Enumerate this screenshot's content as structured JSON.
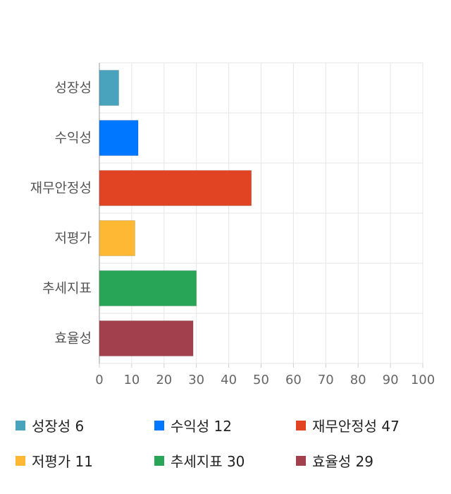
{
  "chart_data": {
    "type": "bar",
    "orientation": "horizontal",
    "title": "",
    "xlabel": "",
    "ylabel": "",
    "categories": [
      "성장성",
      "수익성",
      "재무안정성",
      "저평가",
      "추세지표",
      "효율성"
    ],
    "values": [
      6,
      12,
      47,
      11,
      30,
      29
    ],
    "colors": [
      "#4aa3bd",
      "#0077ff",
      "#e04422",
      "#ffb833",
      "#28a556",
      "#a3404e"
    ],
    "xlim": [
      0,
      100
    ],
    "xticks": [
      "0",
      "10",
      "20",
      "30",
      "40",
      "50",
      "60",
      "70",
      "80",
      "90",
      "100"
    ],
    "grid": true,
    "legend_position": "bottom"
  },
  "legend": [
    {
      "label": "성장성 6",
      "color": "#4aa3bd"
    },
    {
      "label": "수익성 12",
      "color": "#0077ff"
    },
    {
      "label": "재무안정성 47",
      "color": "#e04422"
    },
    {
      "label": "저평가 11",
      "color": "#ffb833"
    },
    {
      "label": "추세지표 30",
      "color": "#28a556"
    },
    {
      "label": "효율성 29",
      "color": "#a3404e"
    }
  ]
}
